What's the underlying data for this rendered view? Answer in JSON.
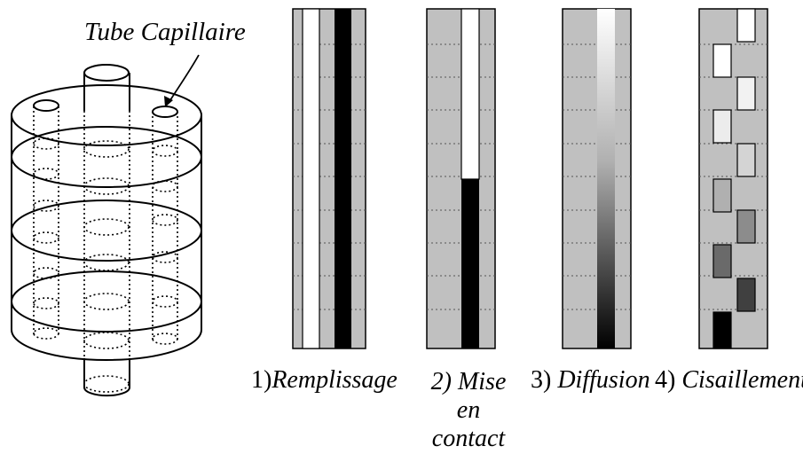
{
  "cylinder_label": "Tube Capillaire",
  "steps": [
    {
      "number": "1)",
      "label": "Remplissage"
    },
    {
      "number": "2)",
      "label": "Mise en contact"
    },
    {
      "number": "3)",
      "label": "Diffusion"
    },
    {
      "number": "4)",
      "label": "Cisaillement"
    }
  ],
  "colors": {
    "panel_gray": "#c0c0c0",
    "dark": "#000000",
    "light": "#ffffff"
  }
}
